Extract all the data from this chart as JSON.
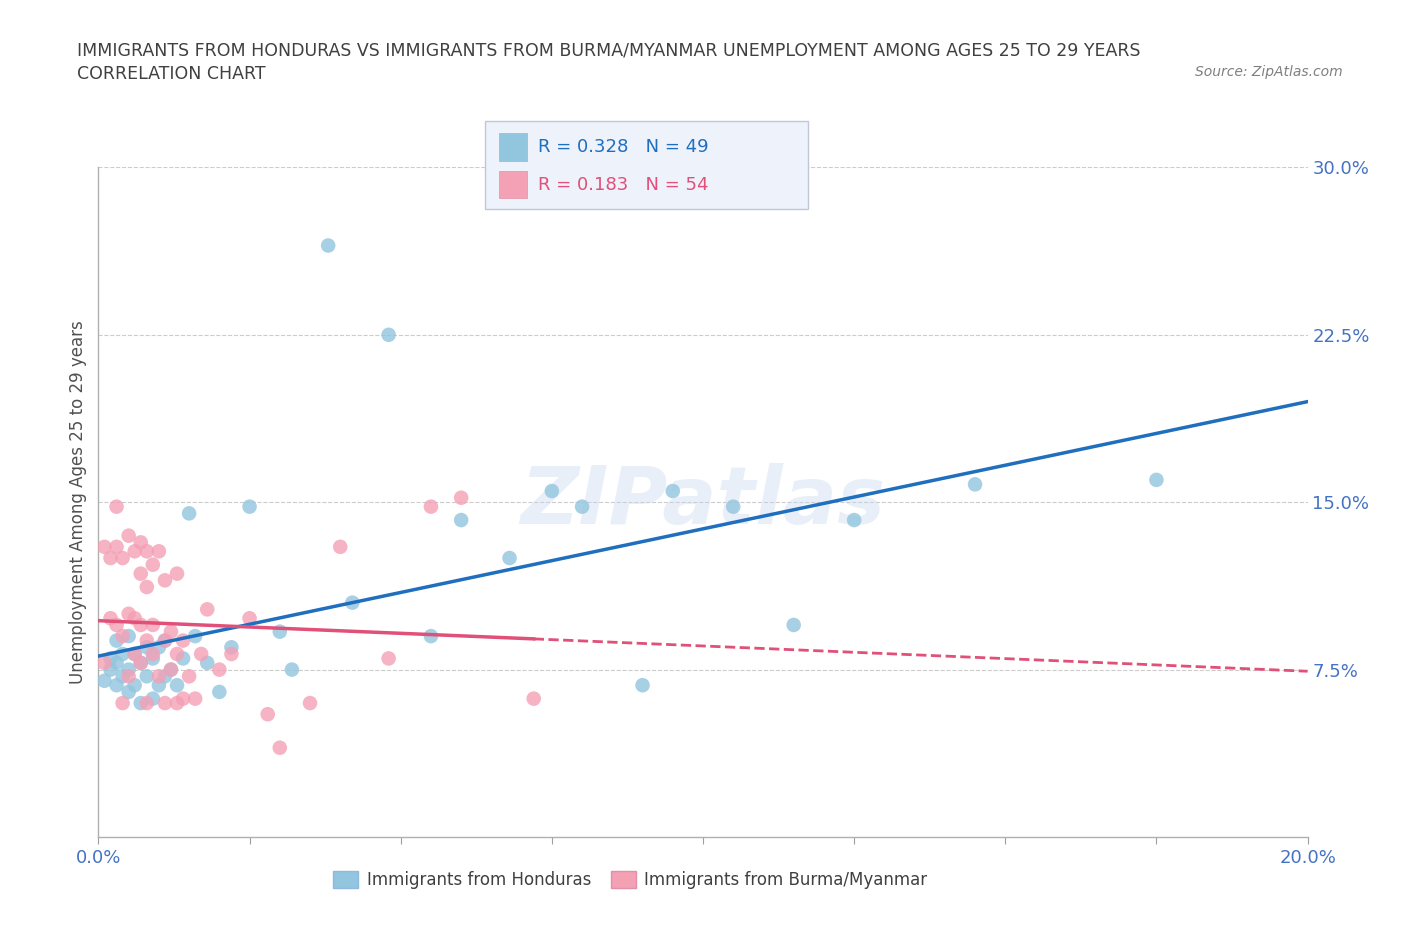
{
  "title": "IMMIGRANTS FROM HONDURAS VS IMMIGRANTS FROM BURMA/MYANMAR UNEMPLOYMENT AMONG AGES 25 TO 29 YEARS",
  "subtitle": "CORRELATION CHART",
  "source": "Source: ZipAtlas.com",
  "ylabel": "Unemployment Among Ages 25 to 29 years",
  "xlim": [
    0.0,
    0.2
  ],
  "ylim": [
    0.0,
    0.3
  ],
  "xticks": [
    0.0,
    0.025,
    0.05,
    0.075,
    0.1,
    0.125,
    0.15,
    0.175,
    0.2
  ],
  "yticks": [
    0.0,
    0.075,
    0.15,
    0.225,
    0.3
  ],
  "ytick_labels": [
    "",
    "7.5%",
    "15.0%",
    "22.5%",
    "30.0%"
  ],
  "series1_name": "Immigrants from Honduras",
  "series1_color": "#92c5de",
  "series1_line_color": "#1f6fbe",
  "series1_R": 0.328,
  "series1_N": 49,
  "series1_x": [
    0.001,
    0.002,
    0.002,
    0.003,
    0.003,
    0.003,
    0.004,
    0.004,
    0.005,
    0.005,
    0.005,
    0.006,
    0.006,
    0.007,
    0.007,
    0.008,
    0.008,
    0.009,
    0.009,
    0.01,
    0.01,
    0.011,
    0.011,
    0.012,
    0.013,
    0.014,
    0.015,
    0.016,
    0.018,
    0.02,
    0.022,
    0.025,
    0.03,
    0.032,
    0.038,
    0.042,
    0.048,
    0.055,
    0.06,
    0.068,
    0.075,
    0.08,
    0.09,
    0.095,
    0.105,
    0.115,
    0.125,
    0.145,
    0.175
  ],
  "series1_y": [
    0.07,
    0.075,
    0.08,
    0.068,
    0.078,
    0.088,
    0.072,
    0.082,
    0.065,
    0.075,
    0.09,
    0.068,
    0.082,
    0.06,
    0.078,
    0.072,
    0.085,
    0.062,
    0.08,
    0.068,
    0.085,
    0.072,
    0.088,
    0.075,
    0.068,
    0.08,
    0.145,
    0.09,
    0.078,
    0.065,
    0.085,
    0.148,
    0.092,
    0.075,
    0.265,
    0.105,
    0.225,
    0.09,
    0.142,
    0.125,
    0.155,
    0.148,
    0.068,
    0.155,
    0.148,
    0.095,
    0.142,
    0.158,
    0.16
  ],
  "series2_name": "Immigrants from Burma/Myanmar",
  "series2_color": "#f4a0b5",
  "series2_line_color": "#e05078",
  "series2_R": 0.183,
  "series2_N": 54,
  "series2_x": [
    0.001,
    0.001,
    0.002,
    0.002,
    0.003,
    0.003,
    0.003,
    0.004,
    0.004,
    0.004,
    0.005,
    0.005,
    0.005,
    0.006,
    0.006,
    0.006,
    0.007,
    0.007,
    0.007,
    0.007,
    0.008,
    0.008,
    0.008,
    0.008,
    0.009,
    0.009,
    0.009,
    0.01,
    0.01,
    0.011,
    0.011,
    0.011,
    0.012,
    0.012,
    0.013,
    0.013,
    0.013,
    0.014,
    0.014,
    0.015,
    0.016,
    0.017,
    0.018,
    0.02,
    0.022,
    0.025,
    0.028,
    0.03,
    0.035,
    0.04,
    0.048,
    0.055,
    0.06,
    0.072
  ],
  "series2_y": [
    0.078,
    0.13,
    0.098,
    0.125,
    0.095,
    0.13,
    0.148,
    0.09,
    0.125,
    0.06,
    0.135,
    0.1,
    0.072,
    0.128,
    0.098,
    0.082,
    0.132,
    0.118,
    0.095,
    0.078,
    0.128,
    0.112,
    0.088,
    0.06,
    0.122,
    0.095,
    0.082,
    0.128,
    0.072,
    0.115,
    0.088,
    0.06,
    0.092,
    0.075,
    0.082,
    0.06,
    0.118,
    0.088,
    0.062,
    0.072,
    0.062,
    0.082,
    0.102,
    0.075,
    0.082,
    0.098,
    0.055,
    0.04,
    0.06,
    0.13,
    0.08,
    0.148,
    0.152,
    0.062
  ],
  "watermark": "ZIPatlas",
  "background_color": "#ffffff",
  "grid_color": "#cccccc",
  "title_color": "#404040",
  "tick_color": "#4472c4"
}
